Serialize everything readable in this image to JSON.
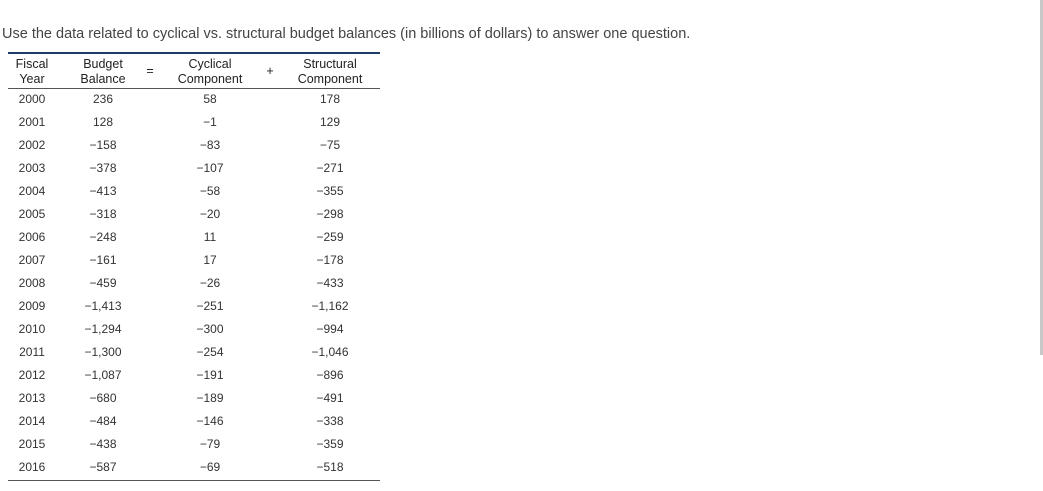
{
  "intro": "Use the data related to cyclical vs. structural budget balances (in billions of dollars) to answer one question.",
  "table": {
    "header": [
      [
        "Fiscal",
        "Year"
      ],
      [
        "Budget",
        "Balance"
      ],
      [
        "="
      ],
      [
        "Cyclical",
        "Component"
      ],
      [
        "+"
      ],
      [
        "Structural",
        "Component"
      ]
    ],
    "rows": [
      [
        "2000",
        "236",
        "58",
        "178"
      ],
      [
        "2001",
        "128",
        "−1",
        "129"
      ],
      [
        "2002",
        "−158",
        "−83",
        "−75"
      ],
      [
        "2003",
        "−378",
        "−107",
        "−271"
      ],
      [
        "2004",
        "−413",
        "−58",
        "−355"
      ],
      [
        "2005",
        "−318",
        "−20",
        "−298"
      ],
      [
        "2006",
        "−248",
        "11",
        "−259"
      ],
      [
        "2007",
        "−161",
        "17",
        "−178"
      ],
      [
        "2008",
        "−459",
        "−26",
        "−433"
      ],
      [
        "2009",
        "−1,413",
        "−251",
        "−1,162"
      ],
      [
        "2010",
        "−1,294",
        "−300",
        "−994"
      ],
      [
        "2011",
        "−1,300",
        "−254",
        "−1,046"
      ],
      [
        "2012",
        "−1,087",
        "−191",
        "−896"
      ],
      [
        "2013",
        "−680",
        "−189",
        "−491"
      ],
      [
        "2014",
        "−484",
        "−146",
        "−338"
      ],
      [
        "2015",
        "−438",
        "−79",
        "−359"
      ],
      [
        "2016",
        "−587",
        "−69",
        "−518"
      ]
    ]
  }
}
